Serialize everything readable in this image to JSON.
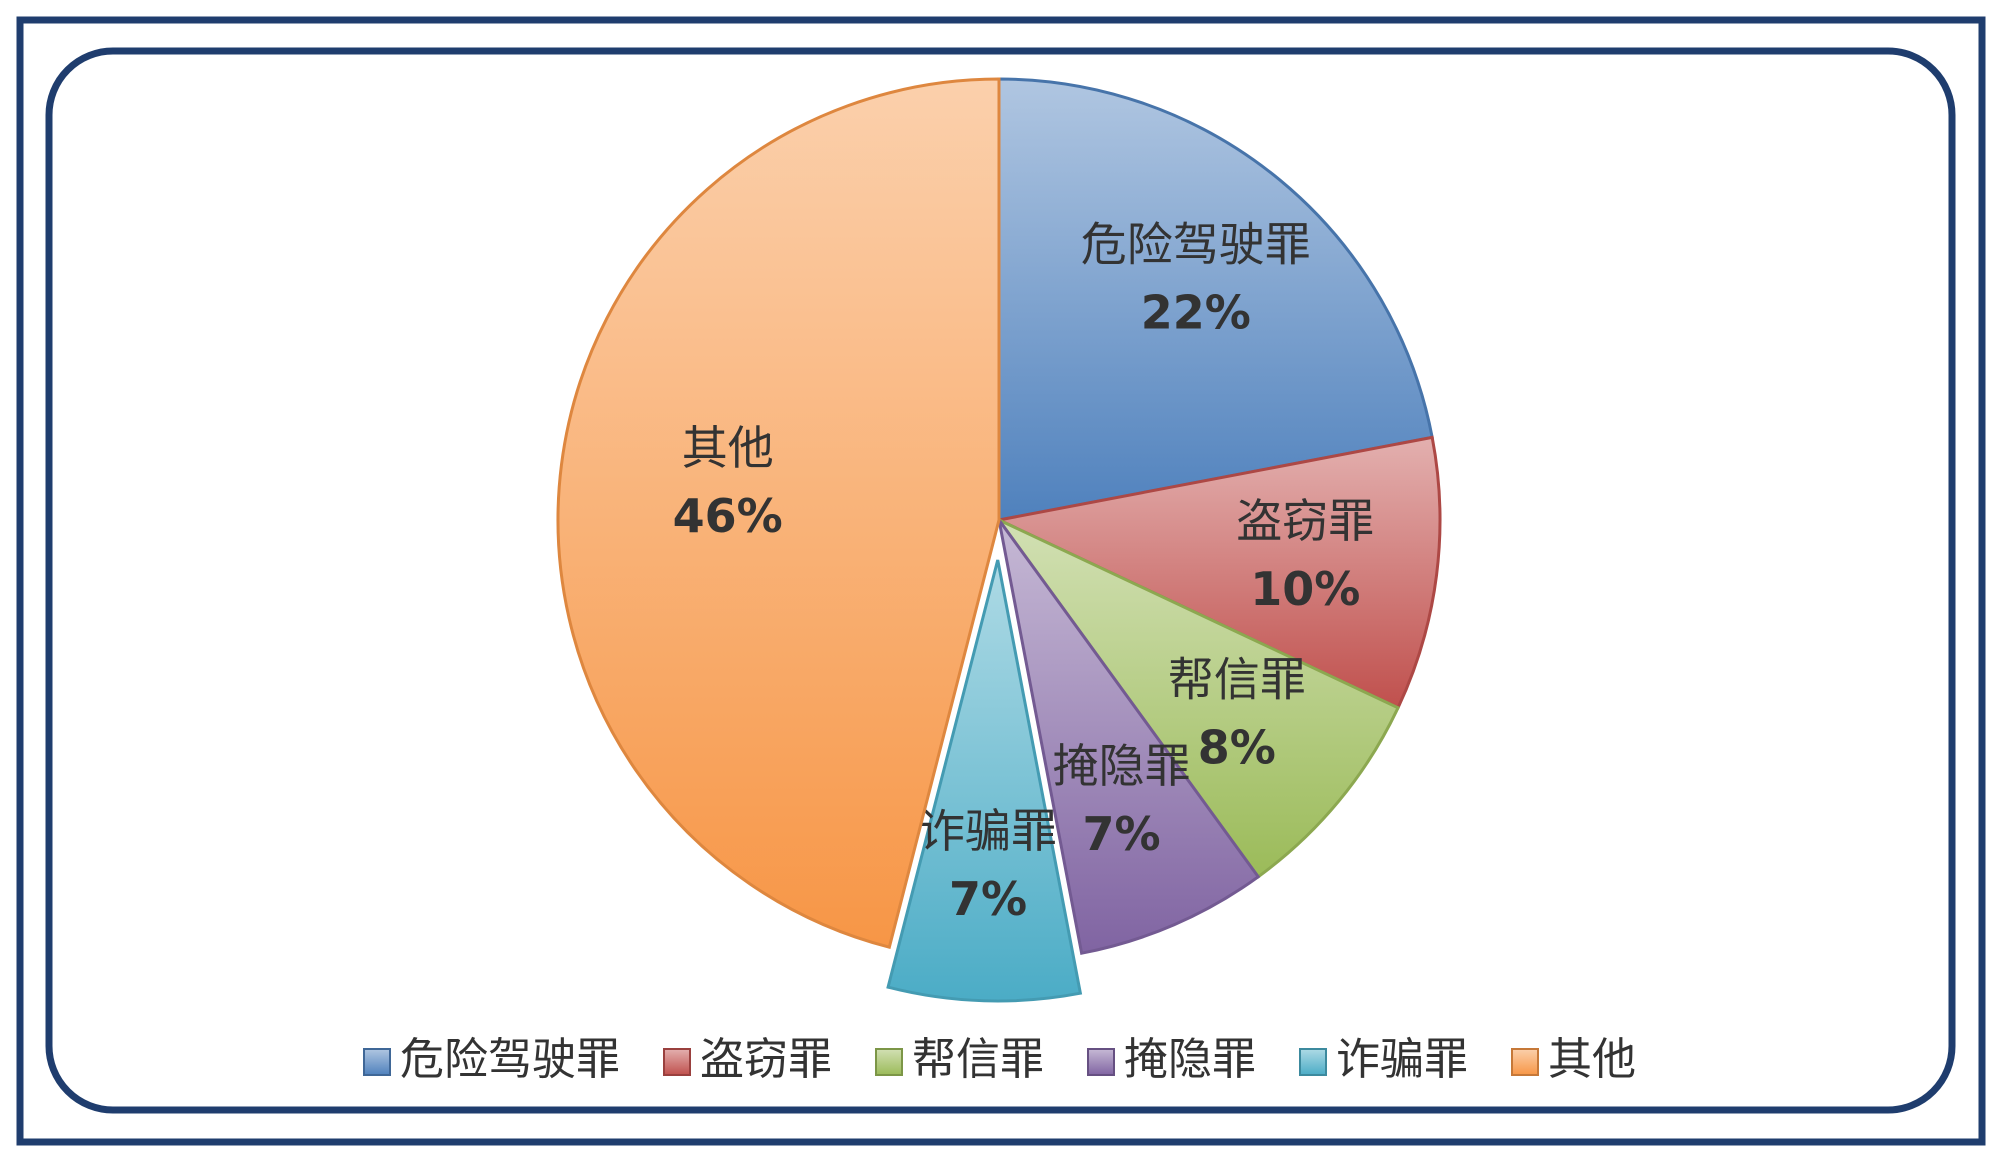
{
  "chart_data": {
    "type": "pie",
    "categories": [
      "危险驾驶罪",
      "盗窃罪",
      "帮信罪",
      "掩隐罪",
      "诈骗罪",
      "其他"
    ],
    "values": [
      22,
      10,
      8,
      7,
      7,
      46
    ],
    "value_labels": [
      "22%",
      "10%",
      "8%",
      "7%",
      "7%",
      "46%"
    ],
    "colors": [
      "#4f81bd",
      "#c0504d",
      "#9bbb59",
      "#8064a2",
      "#4bacc6",
      "#f79646"
    ],
    "legend": "bottom"
  }
}
